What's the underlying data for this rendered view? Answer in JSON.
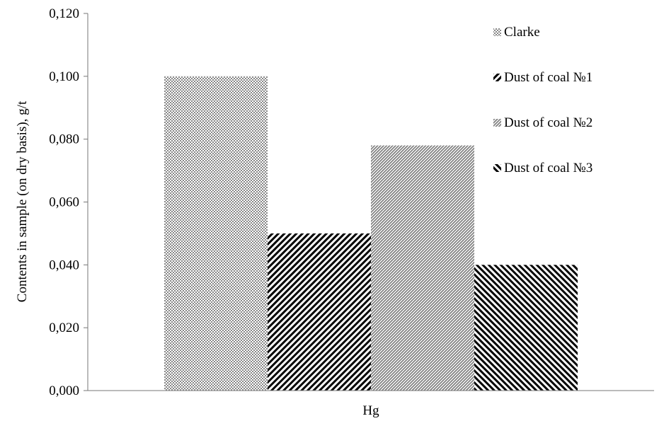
{
  "chart_data": {
    "type": "bar",
    "title": "",
    "xlabel": "",
    "ylabel": "Contents in sample (on dry basis), g/t",
    "categories": [
      "Hg"
    ],
    "ylim": [
      0,
      0.12
    ],
    "yticks": [
      "0,000",
      "0,020",
      "0,040",
      "0,060",
      "0,080",
      "0,100",
      "0,120"
    ],
    "grid": false,
    "legend_position": "right",
    "series": [
      {
        "name": "Clarke",
        "values": [
          0.1
        ],
        "pattern": "crosshatch-gray"
      },
      {
        "name": "Dust of coal №1",
        "values": [
          0.05
        ],
        "pattern": "diagonal-up-black"
      },
      {
        "name": "Dust of coal №2",
        "values": [
          0.078
        ],
        "pattern": "diagonal-up-gray-fine"
      },
      {
        "name": "Dust of coal №3",
        "values": [
          0.04
        ],
        "pattern": "diagonal-down-black"
      }
    ]
  }
}
